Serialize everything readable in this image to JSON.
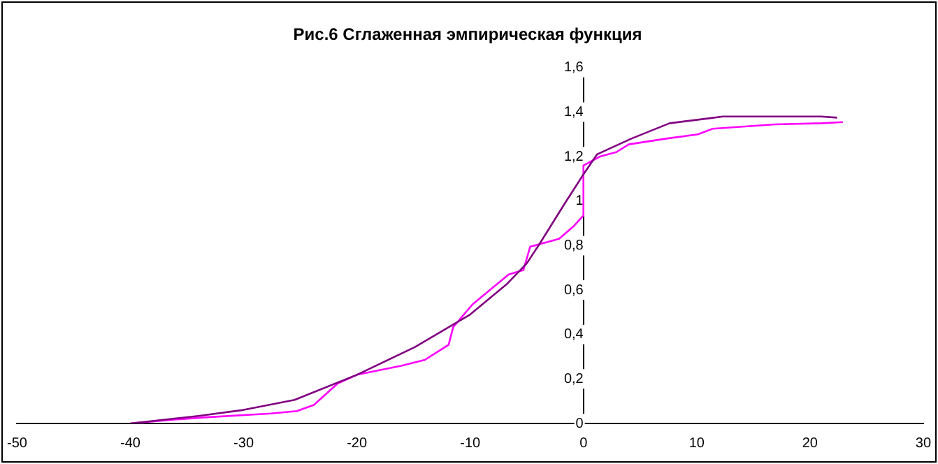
{
  "chart_data": {
    "type": "line",
    "title": "Рис.6 Сглаженная эмпирическая функция",
    "marker": "none",
    "line_style": "solid",
    "grid": false,
    "legend": false,
    "xlim": [
      -50,
      30
    ],
    "xticks": [
      -50,
      -40,
      -30,
      -20,
      -10,
      0,
      10,
      20,
      30
    ],
    "ylim": [
      0,
      1.6
    ],
    "yticks": [
      0,
      {
        "value": 0.2,
        "label": "0,2"
      },
      {
        "value": 0.4,
        "label": "0,4"
      },
      {
        "value": 0.6,
        "label": "0,6"
      },
      {
        "value": 0.8,
        "label": "0,8"
      },
      1,
      {
        "value": 1.2,
        "label": "1,2"
      },
      {
        "value": 1.4,
        "label": "1,4"
      },
      {
        "value": 1.6,
        "label": "1,6"
      }
    ],
    "series": [
      {
        "color": "#800080",
        "x": [
          -40,
          -34,
          -30,
          -25.5,
          -20,
          -14.9,
          -10,
          -6.8,
          -5,
          -3.9,
          -1.7,
          0,
          1.2,
          4.2,
          7.6,
          12.3,
          21,
          22.4
        ],
        "values": [
          0,
          0.034,
          0.061,
          0.106,
          0.219,
          0.343,
          0.49,
          0.625,
          0.72,
          0.805,
          0.985,
          1.12,
          1.21,
          1.28,
          1.35,
          1.38,
          1.38,
          1.375
        ]
      },
      {
        "color": "#ff00ff",
        "x": [
          -40,
          -36.5,
          -33.5,
          -27.6,
          -25.3,
          -23.8,
          -21.7,
          -20,
          -16.1,
          -14,
          -11.9,
          -11.5,
          -9.8,
          -8.5,
          -6.6,
          -5.3,
          -4.7,
          -2.15,
          -0.9,
          0,
          0,
          1.45,
          2.9,
          4,
          7.2,
          10.1,
          11.4,
          16.9,
          21,
          22.9
        ],
        "values": [
          0,
          0.016,
          0.027,
          0.045,
          0.056,
          0.083,
          0.18,
          0.219,
          0.259,
          0.286,
          0.354,
          0.433,
          0.535,
          0.59,
          0.67,
          0.69,
          0.795,
          0.83,
          0.885,
          0.935,
          1.16,
          1.2,
          1.22,
          1.255,
          1.28,
          1.3,
          1.325,
          1.345,
          1.35,
          1.355
        ]
      }
    ]
  }
}
